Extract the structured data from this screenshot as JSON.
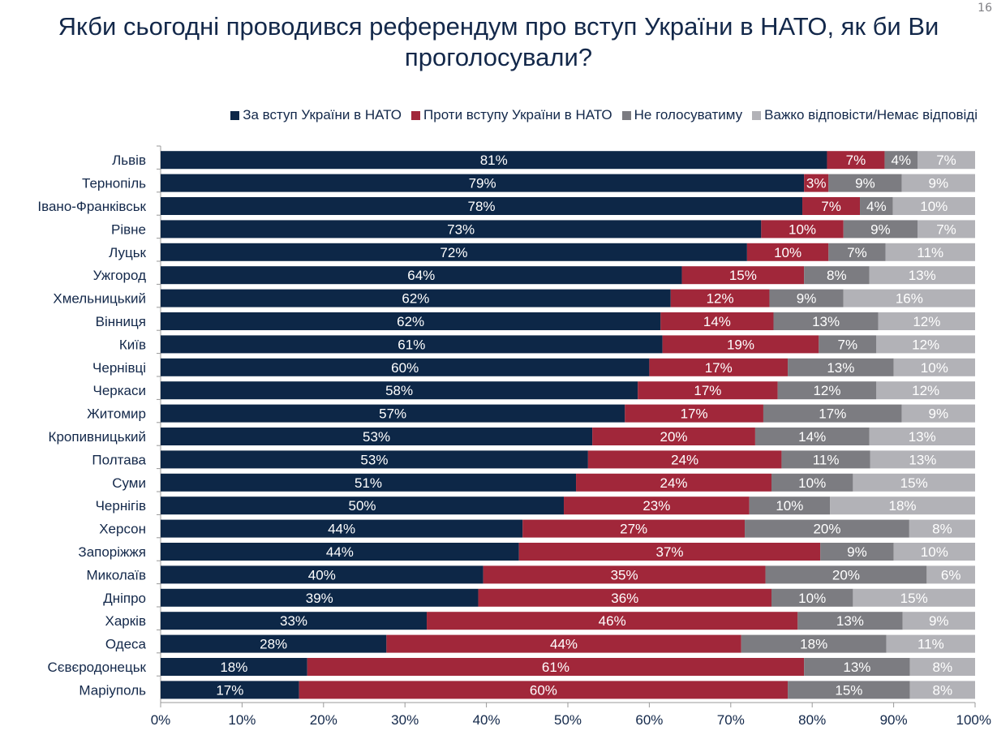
{
  "chart_data": {
    "type": "bar",
    "orientation": "horizontal",
    "stacked": true,
    "title": "Якби сьогодні проводився референдум про вступ України в НАТО, як би Ви проголосували?",
    "legend_placement": "top",
    "xlim": [
      0,
      100
    ],
    "x_ticks": [
      "0%",
      "10%",
      "20%",
      "30%",
      "40%",
      "50%",
      "60%",
      "70%",
      "80%",
      "90%",
      "100%"
    ],
    "categories": [
      "Львів",
      "Тернопіль",
      "Івано-Франківськ",
      "Рівне",
      "Луцьк",
      "Ужгород",
      "Хмельницький",
      "Вінниця",
      "Київ",
      "Чернівці",
      "Черкаси",
      "Житомир",
      "Кропивницький",
      "Полтава",
      "Суми",
      "Чернігів",
      "Херсон",
      "Запоріжжя",
      "Миколаїв",
      "Дніпро",
      "Харків",
      "Одеса",
      "Сєвєродонецьк",
      "Маріуполь"
    ],
    "series": [
      {
        "name": "За вступ України в НАТО",
        "color": "#0d2747",
        "values": [
          81,
          79,
          78,
          73,
          72,
          64,
          62,
          62,
          61,
          60,
          58,
          57,
          53,
          53,
          51,
          50,
          44,
          44,
          40,
          39,
          33,
          28,
          18,
          17
        ]
      },
      {
        "name": "Проти вступу України в НАТО",
        "color": "#a1273a",
        "values": [
          7,
          3,
          7,
          10,
          10,
          15,
          12,
          14,
          19,
          17,
          17,
          17,
          20,
          24,
          24,
          23,
          27,
          37,
          35,
          36,
          46,
          44,
          61,
          60
        ]
      },
      {
        "name": "Не голосуватиму",
        "color": "#7c7c81",
        "values": [
          4,
          9,
          4,
          9,
          7,
          8,
          9,
          13,
          7,
          13,
          12,
          17,
          14,
          11,
          10,
          10,
          20,
          9,
          20,
          10,
          13,
          18,
          13,
          15
        ]
      },
      {
        "name": "Важко відповісти/Немає відповіді",
        "color": "#b2b2b7",
        "values": [
          7,
          9,
          10,
          7,
          11,
          13,
          16,
          12,
          12,
          10,
          12,
          9,
          13,
          13,
          15,
          18,
          8,
          10,
          6,
          15,
          9,
          11,
          8,
          8
        ]
      }
    ]
  },
  "page_number": "16"
}
